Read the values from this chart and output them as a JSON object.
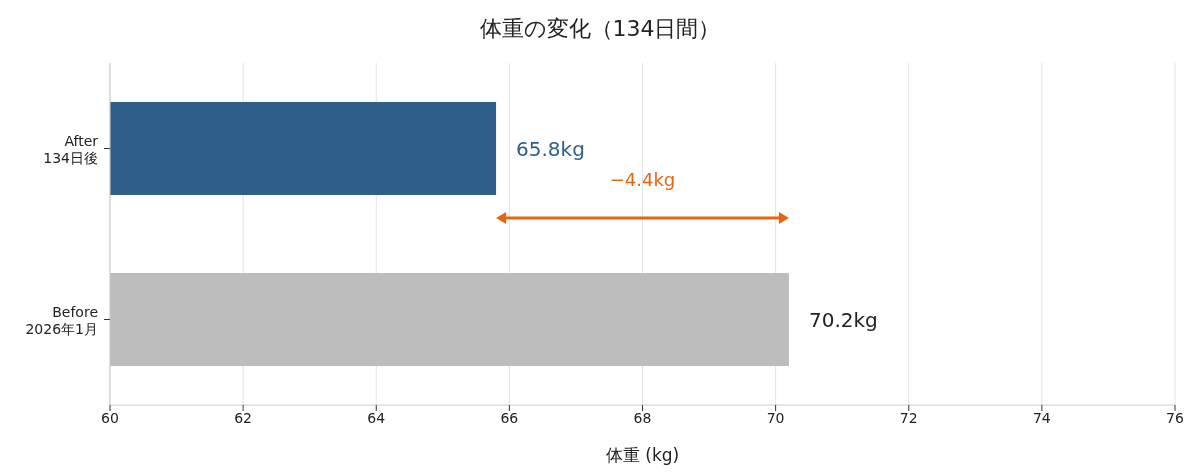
{
  "chart_data": {
    "type": "bar",
    "orientation": "horizontal",
    "title": "体重の変化（134日間）",
    "xlabel": "体重 (kg)",
    "categories": [
      "After\n134日後",
      "Before\n2026年1月"
    ],
    "values": [
      65.8,
      70.2
    ],
    "colors": [
      "#2d5f8a",
      "#bdbdbd"
    ],
    "value_labels": [
      "65.8kg",
      "70.2kg"
    ],
    "xlim": [
      60,
      76
    ],
    "xticks": [
      60,
      62,
      64,
      66,
      68,
      70,
      72,
      74,
      76
    ],
    "grid": "x",
    "annotations": [
      "−4.4kg"
    ]
  }
}
